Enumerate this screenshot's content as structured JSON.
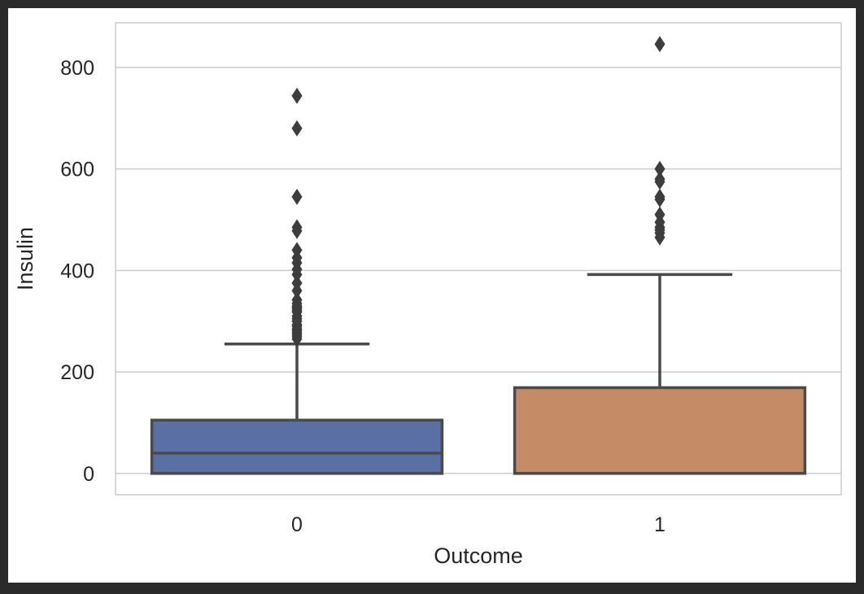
{
  "chart_data": {
    "type": "boxplot",
    "title": "",
    "xlabel": "Outcome",
    "ylabel": "Insulin",
    "ylim": [
      -42,
      888
    ],
    "yticks": [
      0,
      200,
      400,
      600,
      800
    ],
    "grid": true,
    "categories": [
      "0",
      "1"
    ],
    "colors": [
      "#5a6fa3",
      "#c48b66"
    ],
    "boxes": [
      {
        "category": "0",
        "whisker_low": 0,
        "q1": 0,
        "median": 40,
        "q3": 105,
        "whisker_high": 255,
        "outliers": [
          265,
          270,
          274,
          278,
          282,
          285,
          290,
          293,
          300,
          305,
          310,
          318,
          321,
          325,
          328,
          330,
          335,
          342,
          360,
          375,
          392,
          402,
          415,
          425,
          440,
          478,
          485,
          545,
          680,
          744
        ]
      },
      {
        "category": "1",
        "whisker_low": 0,
        "q1": 0,
        "median": 0,
        "q3": 169,
        "whisker_high": 392,
        "outliers": [
          465,
          474,
          480,
          485,
          495,
          510,
          540,
          545,
          575,
          580,
          600,
          846
        ]
      }
    ]
  }
}
